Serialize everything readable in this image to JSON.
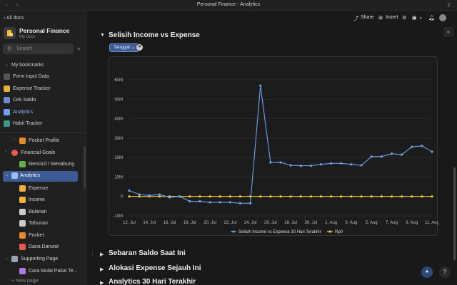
{
  "window": {
    "title": "Personal Finance - Analytics",
    "back": "‹",
    "forward": "›"
  },
  "sidebar": {
    "all_docs": "‹ All docs",
    "workspace_name": "Personal Finance",
    "workspace_sub": "My docs",
    "search_placeholder": "Search",
    "bookmarks_label": "My bookmarks",
    "bookmarks": [
      "Form Input Data",
      "Expense Tracker",
      "Cek Saldo",
      "Analytics",
      "Habit Tracker"
    ],
    "tree": [
      {
        "label": "Pocket Profile",
        "icon_color": "#e8892a"
      },
      {
        "label": "Financial Goals",
        "icon_color": "#e55b4d"
      },
      {
        "label": "Mencicil / Menabung",
        "icon_color": "#5fb04d"
      },
      {
        "label": "Analytics",
        "icon_color": "#6ea0f0"
      },
      {
        "label": "Expense",
        "icon_color": "#f2b233"
      },
      {
        "label": "Income",
        "icon_color": "#f2b233"
      },
      {
        "label": "Bulanan",
        "icon_color": "#cccccc"
      },
      {
        "label": "Tahunan",
        "icon_color": "#cccccc"
      },
      {
        "label": "Pocket",
        "icon_color": "#e8892a"
      },
      {
        "label": "Dana Darurat",
        "icon_color": "#e55b4d"
      },
      {
        "label": "Supporting Page",
        "icon_color": "#9aa4b5"
      },
      {
        "label": "Cara Mulai Pakai Te...",
        "icon_color": "#b07be0"
      }
    ],
    "new_page": "+ New page"
  },
  "topbar": {
    "share": "Share",
    "insert": "Insert"
  },
  "main": {
    "section1_title": "Selisih Income vs Expense",
    "filter_chip": "Tanggal",
    "section2_title": "Sebaran Saldo Saat Ini",
    "section3_title": "Alokasi Expense Sejauh Ini",
    "section4_title": "Analytics 30 Hari Terakhir"
  },
  "chart_data": {
    "type": "line",
    "x": [
      "12. Jul",
      "13. Jul",
      "14. Jul",
      "15. Jul",
      "16. Jul",
      "17. Jul",
      "18. Jul",
      "19. Jul",
      "20. Jul",
      "21. Jul",
      "22. Jul",
      "23. Jul",
      "24. Jul",
      "25. Jul",
      "26. Jul",
      "27. Jul",
      "28. Jul",
      "29. Jul",
      "30. Jul",
      "31. Jul",
      "1. Aug",
      "2. Aug",
      "3. Aug",
      "4. Aug",
      "5. Aug",
      "6. Aug",
      "7. Aug",
      "8. Aug",
      "9. Aug",
      "10. Aug",
      "11. Aug"
    ],
    "x_tick_labels": [
      "12. Jul",
      "14. Jul",
      "16. Jul",
      "18. Jul",
      "20. Jul",
      "22. Jul",
      "24. Jul",
      "26. Jul",
      "28. Jul",
      "30. Jul",
      "1. Aug",
      "3. Aug",
      "5. Aug",
      "7. Aug",
      "9. Aug",
      "11. Aug"
    ],
    "y_tick_labels": [
      "-10M",
      "0",
      "10M",
      "20M",
      "30M",
      "40M",
      "50M",
      "60M"
    ],
    "ylim": [
      -10,
      60
    ],
    "y_unit": "M",
    "series": [
      {
        "name": "Selisih Income vs Expense 30 Hari Terakhir",
        "color": "#6ea0f0",
        "values": [
          3,
          1,
          0.5,
          1,
          -0.5,
          0,
          -2.5,
          -2.5,
          -3,
          -3,
          -3,
          -3.5,
          -3.5,
          57,
          17.5,
          17.5,
          16,
          15.8,
          15.8,
          16.5,
          17,
          17,
          16.5,
          16,
          20.5,
          20.5,
          22,
          21.5,
          25.5,
          26,
          23
        ]
      },
      {
        "name": "Rp0",
        "color": "#f2c335",
        "values": [
          0,
          0,
          0,
          0,
          0,
          0,
          0,
          0,
          0,
          0,
          0,
          0,
          0,
          0,
          0,
          0,
          0,
          0,
          0,
          0,
          0,
          0,
          0,
          0,
          0,
          0,
          0,
          0,
          0,
          0,
          0
        ]
      }
    ],
    "grid": true,
    "legend": "bottom-center"
  },
  "colors": {
    "accent": "#3d5c96",
    "line": "#6ea0f0",
    "baseline": "#f2c335"
  }
}
